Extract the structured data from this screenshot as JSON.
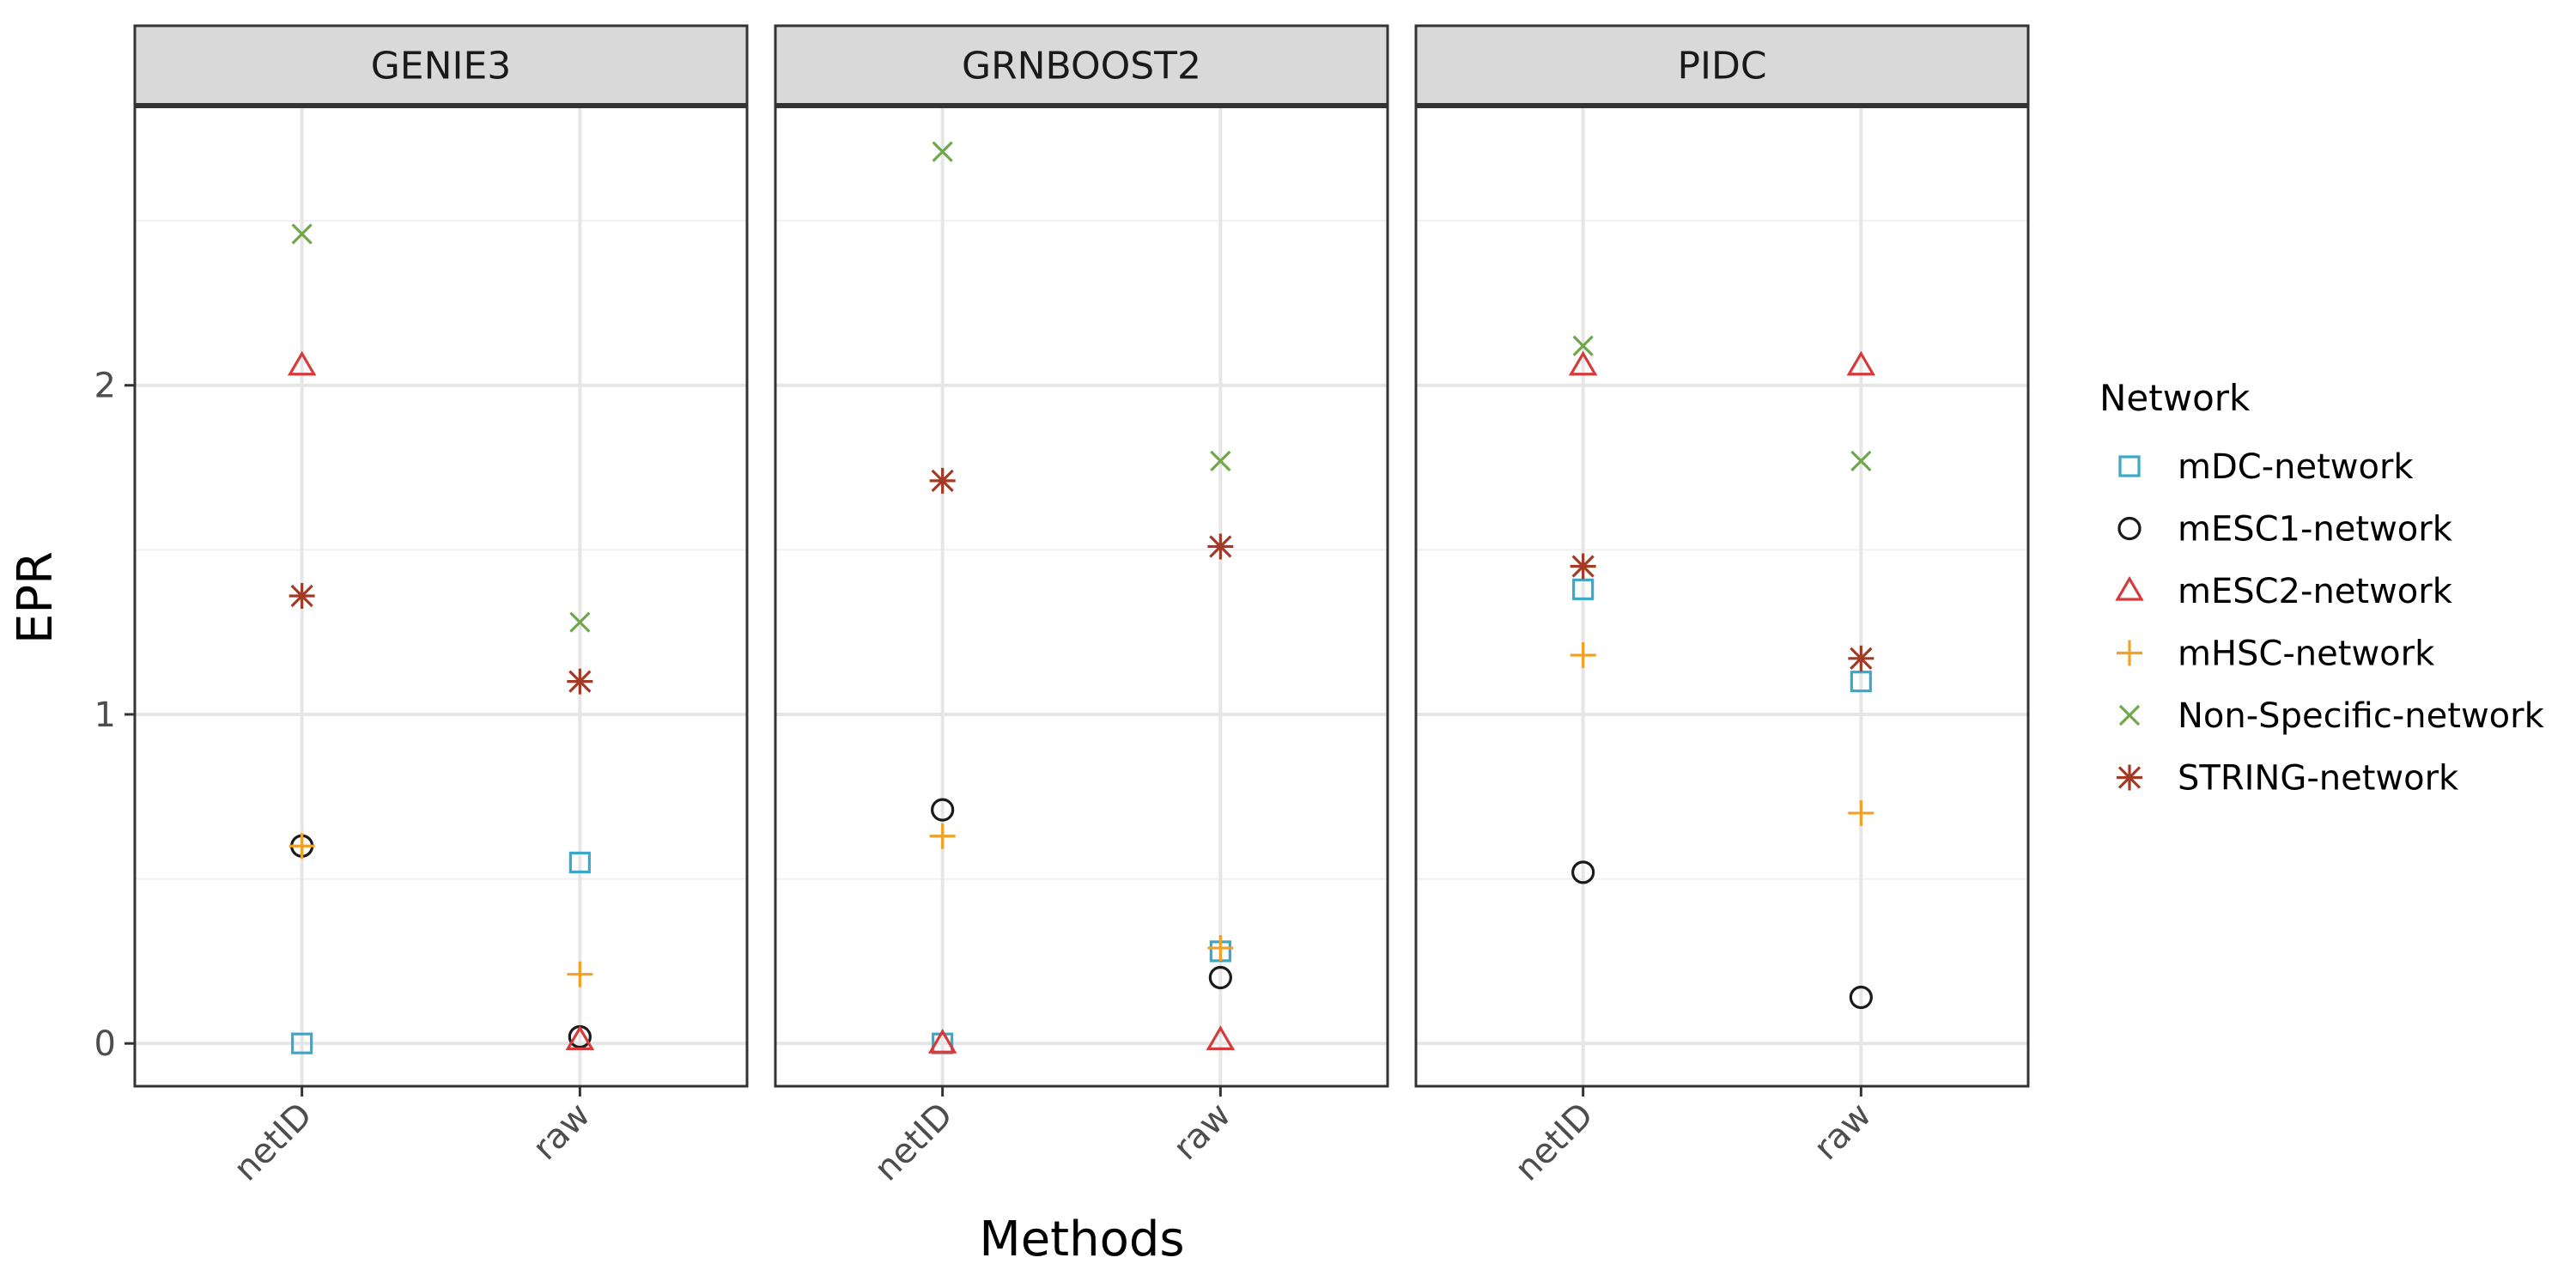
{
  "chart_data": {
    "type": "scatter",
    "facets": [
      "GENIE3",
      "GRNBOOST2",
      "PIDC"
    ],
    "categories": [
      "netID",
      "raw"
    ],
    "xlabel": "Methods",
    "ylabel": "EPR",
    "ylim": [
      -0.13,
      2.85
    ],
    "yticks": [
      "0",
      "1",
      "2"
    ],
    "grid": true,
    "legend": {
      "title": "Network",
      "placement": "right"
    },
    "series": [
      {
        "name": "mDC-network",
        "color": "#3aa9c9",
        "shape": "square",
        "values": {
          "GENIE3": [
            0.0,
            0.55
          ],
          "GRNBOOST2": [
            0.0,
            0.28
          ],
          "PIDC": [
            1.38,
            1.1
          ]
        }
      },
      {
        "name": "mESC1-network",
        "color": "#1a1a1a",
        "shape": "circle",
        "values": {
          "GENIE3": [
            0.6,
            0.02
          ],
          "GRNBOOST2": [
            0.71,
            0.2
          ],
          "PIDC": [
            0.52,
            0.14
          ]
        }
      },
      {
        "name": "mESC2-network",
        "color": "#d63a3a",
        "shape": "triangle",
        "values": {
          "GENIE3": [
            2.06,
            0.01
          ],
          "GRNBOOST2": [
            0.0,
            0.01
          ],
          "PIDC": [
            2.06,
            2.06
          ]
        }
      },
      {
        "name": "mHSC-network",
        "color": "#f2a126",
        "shape": "plus",
        "values": {
          "GENIE3": [
            0.6,
            0.21
          ],
          "GRNBOOST2": [
            0.63,
            0.29
          ],
          "PIDC": [
            1.18,
            0.7
          ]
        }
      },
      {
        "name": "Non-Specific-network",
        "color": "#6fa84a",
        "shape": "cross",
        "values": {
          "GENIE3": [
            2.46,
            1.28
          ],
          "GRNBOOST2": [
            2.71,
            1.77
          ],
          "PIDC": [
            2.12,
            1.77
          ]
        }
      },
      {
        "name": "STRING-network",
        "color": "#a33a26",
        "shape": "asterisk",
        "values": {
          "GENIE3": [
            1.36,
            1.1
          ],
          "GRNBOOST2": [
            1.71,
            1.51
          ],
          "PIDC": [
            1.45,
            1.17
          ]
        }
      }
    ]
  }
}
